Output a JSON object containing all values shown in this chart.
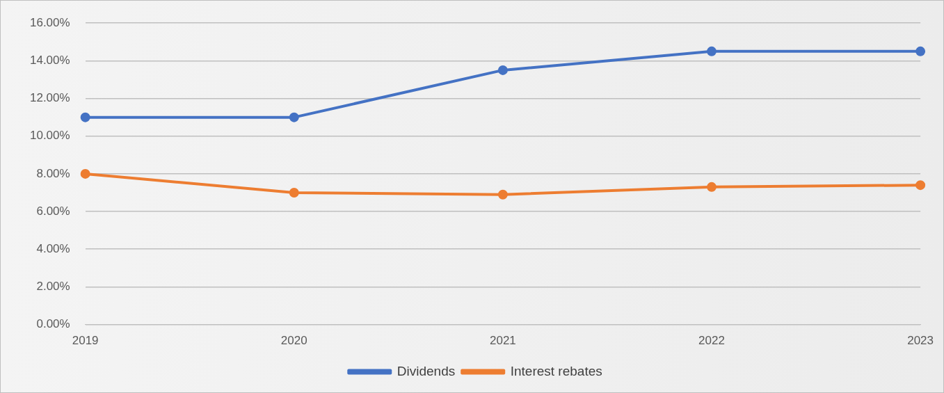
{
  "chart_data": {
    "type": "line",
    "categories": [
      "2019",
      "2020",
      "2021",
      "2022",
      "2023"
    ],
    "series": [
      {
        "name": "Dividends",
        "color": "#4472c4",
        "values": [
          11.0,
          11.0,
          13.5,
          14.5,
          14.5
        ]
      },
      {
        "name": "Interest rebates",
        "color": "#ed7d31",
        "values": [
          8.0,
          7.0,
          6.9,
          7.3,
          7.4
        ]
      }
    ],
    "ylim": [
      0,
      16
    ],
    "yticks": [
      {
        "value": 0,
        "label": "0.00%"
      },
      {
        "value": 2,
        "label": "2.00%"
      },
      {
        "value": 4,
        "label": "4.00%"
      },
      {
        "value": 6,
        "label": "6.00%"
      },
      {
        "value": 8,
        "label": "8.00%"
      },
      {
        "value": 10,
        "label": "10.00%"
      },
      {
        "value": 12,
        "label": "12.00%"
      },
      {
        "value": 14,
        "label": "14.00%"
      },
      {
        "value": 16,
        "label": "16.00%"
      }
    ],
    "grid": "y",
    "legend": "bottom",
    "marker": "circle",
    "line_style": "solid"
  }
}
